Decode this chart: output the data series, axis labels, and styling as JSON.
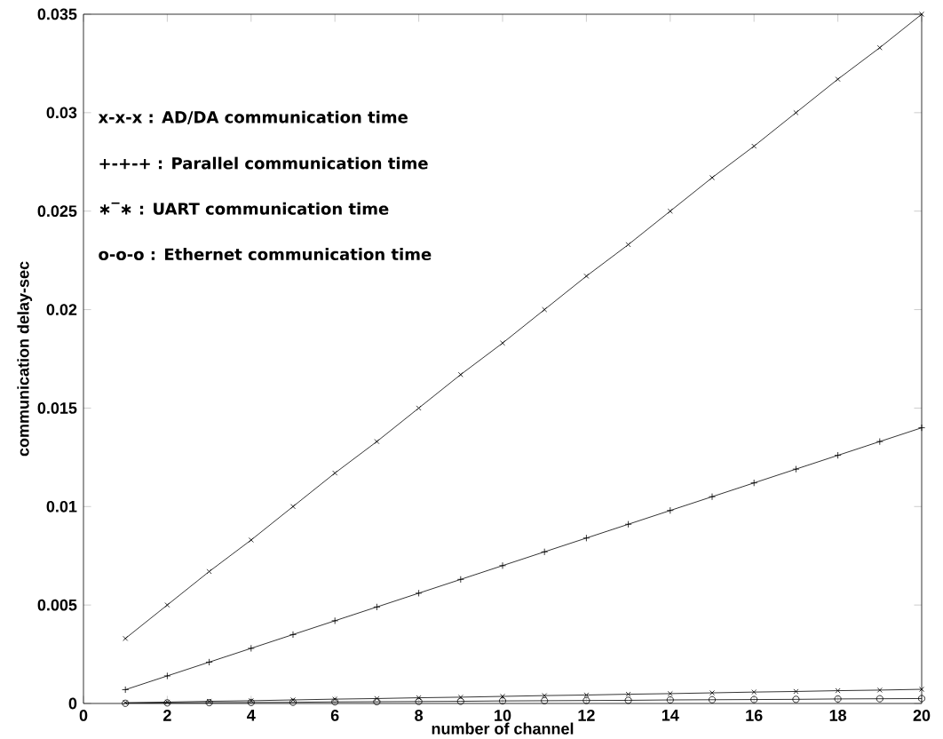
{
  "chart_data": {
    "type": "line",
    "xlabel": "number of channel",
    "ylabel": "communication delay-sec",
    "x": [
      1,
      2,
      3,
      4,
      5,
      6,
      7,
      8,
      9,
      10,
      11,
      12,
      13,
      14,
      15,
      16,
      17,
      18,
      19,
      20
    ],
    "series": [
      {
        "color": "#000000",
        "marker": "cross",
        "values": [
          0.0033,
          0.005,
          0.0067,
          0.0083,
          0.01,
          0.0117,
          0.0133,
          0.015,
          0.0167,
          0.0183,
          0.02,
          0.0217,
          0.0233,
          0.025,
          0.0267,
          0.0283,
          0.03,
          0.0317,
          0.0333,
          0.035
        ]
      },
      {
        "color": "#000000",
        "marker": "plus",
        "values": [
          0.0007,
          0.0014,
          0.0021,
          0.0028,
          0.0035,
          0.0042,
          0.0049,
          0.0056,
          0.0063,
          0.007,
          0.0077,
          0.0084,
          0.0091,
          0.0098,
          0.0105,
          0.0112,
          0.0119,
          0.0126,
          0.0133,
          0.014
        ]
      },
      {
        "color": "#000000",
        "marker": "cross",
        "values": [
          4e-05,
          7e-05,
          0.00011,
          0.00014,
          0.00018,
          0.00022,
          0.00025,
          0.00029,
          0.00032,
          0.00036,
          0.0004,
          0.00043,
          0.00047,
          0.0005,
          0.00054,
          0.00058,
          0.00061,
          0.00065,
          0.00068,
          0.00072
        ]
      },
      {
        "color": "#000000",
        "marker": "circle",
        "values": [
          1e-05,
          3e-05,
          4e-05,
          5e-05,
          6e-05,
          8e-05,
          9e-05,
          0.0001,
          0.00011,
          0.00013,
          0.00014,
          0.00015,
          0.00016,
          0.00018,
          0.00019,
          0.0002,
          0.00021,
          0.00023,
          0.00024,
          0.00025
        ]
      }
    ],
    "xlim": [
      0,
      20
    ],
    "ylim": [
      0,
      0.035
    ],
    "xticks": [
      0,
      2,
      4,
      6,
      8,
      10,
      12,
      14,
      16,
      18,
      20
    ],
    "yticks": [
      0,
      0.005,
      0.01,
      0.015,
      0.02,
      0.025,
      0.03,
      0.035
    ],
    "line_style": "solid",
    "grid": false,
    "annotations": [
      "x-x-x : AD/DA communication time",
      "+-+-+ : Parallel communication time",
      "∗‾∗ : UART communication time",
      "o-o-o : Ethernet communication time"
    ]
  }
}
